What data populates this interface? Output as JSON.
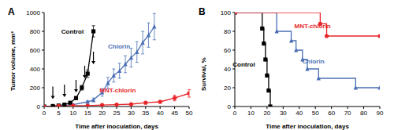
{
  "chart_data": [
    {
      "type": "line",
      "title": "A",
      "xlabel": "Time after inoculation, days",
      "ylabel": "Tumor volume, mm³",
      "xlim": [
        0,
        50
      ],
      "xticks": [
        0,
        5,
        10,
        15,
        20,
        25,
        30,
        35,
        40,
        45,
        50
      ],
      "ylim": [
        0,
        1000
      ],
      "yticks": [
        0,
        200,
        400,
        600,
        800,
        1000
      ],
      "series": [
        {
          "name": "Control",
          "color": "#000000",
          "marker": "square",
          "x": [
            0,
            3,
            5,
            7,
            9,
            11,
            13,
            15,
            17
          ],
          "values": [
            0,
            5,
            10,
            20,
            40,
            90,
            200,
            350,
            800
          ],
          "errors": [
            0,
            2,
            3,
            5,
            8,
            15,
            25,
            40,
            60
          ]
        },
        {
          "name": "Chlorin",
          "color": "#4a6fb5",
          "marker": "triangle",
          "x": [
            0,
            5,
            10,
            15,
            17,
            20,
            22,
            24,
            26,
            28,
            30,
            32,
            34,
            36,
            38
          ],
          "values": [
            0,
            5,
            20,
            50,
            70,
            150,
            250,
            330,
            380,
            450,
            520,
            580,
            680,
            760,
            850
          ],
          "errors": [
            0,
            2,
            5,
            10,
            20,
            40,
            60,
            70,
            80,
            90,
            100,
            110,
            120,
            130,
            140
          ]
        },
        {
          "name": "MNT-chlorin",
          "color": "#e8262a",
          "marker": "circle",
          "x": [
            0,
            5,
            10,
            15,
            20,
            25,
            30,
            35,
            40,
            45,
            50
          ],
          "values": [
            0,
            5,
            10,
            10,
            15,
            20,
            25,
            40,
            50,
            90,
            140
          ],
          "errors": [
            0,
            2,
            3,
            4,
            5,
            6,
            8,
            12,
            15,
            30,
            40
          ]
        }
      ],
      "arrows": {
        "x": [
          3,
          7,
          11,
          14,
          17
        ],
        "y": [
          80,
          100,
          150,
          300,
          450
        ]
      },
      "annotations": [
        {
          "text": "Control",
          "x": 15,
          "y": 800
        },
        {
          "text": "Chlorin",
          "x": 31,
          "y": 640
        },
        {
          "text": "MNT-chlorin",
          "x": 33,
          "y": 170
        }
      ]
    },
    {
      "type": "step",
      "title": "B",
      "xlabel": "Time after inoculation, days",
      "ylabel": "Survival, %",
      "xlim": [
        0,
        90
      ],
      "xticks": [
        0,
        10,
        20,
        30,
        40,
        50,
        60,
        70,
        80,
        90
      ],
      "ylim": [
        0,
        100
      ],
      "yticks": [
        0,
        20,
        40,
        60,
        80,
        100
      ],
      "series": [
        {
          "name": "Control",
          "color": "#000000",
          "marker": "square",
          "x": [
            0,
            17,
            18,
            19,
            20,
            21,
            22
          ],
          "values": [
            100,
            83,
            67,
            50,
            33,
            17,
            0
          ]
        },
        {
          "name": "Chlorin",
          "color": "#4a6fb5",
          "marker": "triangle",
          "x": [
            0,
            26,
            35,
            38,
            42,
            45,
            52,
            75,
            90
          ],
          "values": [
            100,
            80,
            70,
            60,
            50,
            40,
            30,
            20,
            20
          ]
        },
        {
          "name": "MNT-chlorin",
          "color": "#e8262a",
          "marker": "circle",
          "x": [
            0,
            53,
            57,
            90
          ],
          "values": [
            100,
            88,
            75,
            75
          ]
        }
      ],
      "annotations": [
        {
          "text": "Control",
          "x": 15,
          "y": 45
        },
        {
          "text": "Chlorin",
          "x": 58,
          "y": 48
        },
        {
          "text": "MNT-chlorin",
          "x": 62,
          "y": 86
        }
      ]
    }
  ]
}
